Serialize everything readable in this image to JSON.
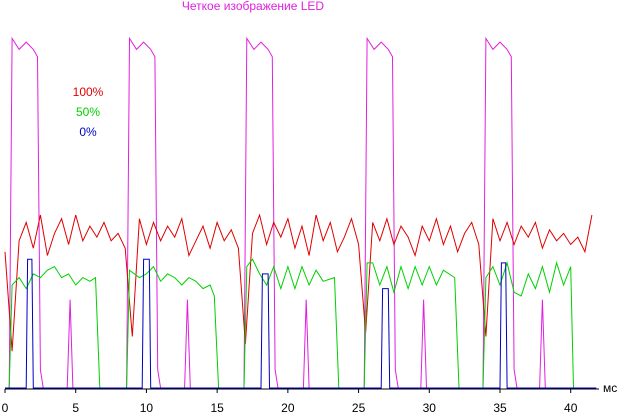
{
  "chart_data": {
    "type": "line",
    "title": "Четкое изображение LED",
    "title_color": "#e020e0",
    "x_unit": "мс",
    "xlim": [
      0,
      42
    ],
    "xticks": [
      0,
      5,
      10,
      15,
      20,
      25,
      30,
      35,
      40
    ],
    "ylim": [
      0,
      100
    ],
    "series": [
      {
        "color": "#e020e0",
        "x": [
          0,
          0.3,
          0.5,
          1,
          1.5,
          2,
          2.3,
          2.5,
          2.7,
          4.4,
          4.6,
          4.8,
          8.6,
          8.8,
          9.3,
          9.8,
          10.3,
          10.6,
          10.8,
          11,
          12.7,
          12.9,
          13.1,
          16.9,
          17.1,
          17.6,
          18.1,
          18.6,
          18.9,
          19.1,
          19.3,
          21.1,
          21.3,
          21.5,
          25.4,
          25.6,
          26.1,
          26.6,
          27.1,
          27.4,
          27.6,
          27.8,
          29.4,
          29.6,
          29.8,
          33.8,
          34,
          34.5,
          35,
          35.5,
          35.8,
          36,
          36.2,
          37.8,
          38,
          38.2,
          41.8
        ],
        "values": [
          0,
          0,
          95,
          92,
          94,
          92,
          90,
          5,
          0,
          0,
          24,
          0,
          0,
          95,
          92,
          94,
          92,
          90,
          5,
          0,
          0,
          24,
          0,
          0,
          95,
          92,
          94,
          92,
          90,
          5,
          0,
          0,
          24,
          0,
          0,
          95,
          92,
          94,
          92,
          90,
          5,
          0,
          0,
          24,
          0,
          0,
          95,
          92,
          94,
          92,
          90,
          5,
          0,
          0,
          24,
          0,
          0
        ]
      },
      {
        "name": "100%",
        "color": "#e00000",
        "x": [
          0,
          0.5,
          1,
          1.5,
          2,
          2.5,
          3,
          3.5,
          4,
          4.5,
          5,
          5.5,
          6,
          6.5,
          7,
          7.5,
          8,
          8.5,
          9,
          9.5,
          10,
          10.5,
          11,
          11.5,
          12,
          12.5,
          13,
          13.5,
          14,
          14.5,
          15,
          15.5,
          16,
          16.5,
          17,
          17.5,
          18,
          18.5,
          19,
          19.5,
          20,
          20.5,
          21,
          21.5,
          22,
          22.5,
          23,
          23.5,
          24,
          24.5,
          25,
          25.5,
          26,
          26.5,
          27,
          27.5,
          28,
          28.5,
          29,
          29.5,
          30,
          30.5,
          31,
          31.5,
          32,
          32.5,
          33,
          33.5,
          34,
          34.5,
          35,
          35.5,
          36,
          36.5,
          37,
          37.5,
          38,
          38.5,
          39,
          39.5,
          40,
          40.5,
          41,
          41.5
        ],
        "values": [
          37,
          10,
          40,
          45,
          38,
          47,
          36,
          42,
          46,
          39,
          47,
          40,
          44,
          41,
          45,
          40,
          42,
          38,
          14,
          46,
          39,
          45,
          40,
          44,
          41,
          46,
          36,
          40,
          44,
          38,
          45,
          40,
          43,
          38,
          12,
          42,
          47,
          39,
          45,
          41,
          46,
          38,
          44,
          36,
          47,
          40,
          45,
          37,
          41,
          46,
          39,
          15,
          45,
          40,
          46,
          39,
          44,
          41,
          36,
          44,
          40,
          46,
          39,
          44,
          37,
          42,
          45,
          39,
          14,
          46,
          40,
          45,
          39,
          44,
          41,
          45,
          38,
          43,
          40,
          42,
          39,
          41,
          37,
          47
        ]
      },
      {
        "name": "50%",
        "color": "#00d000",
        "x": [
          0,
          0.3,
          0.5,
          1,
          1.5,
          2,
          2.5,
          3,
          3.5,
          4,
          4.5,
          5,
          5.5,
          6,
          6.4,
          6.7,
          8.6,
          8.8,
          9.5,
          10,
          10.5,
          11,
          11.5,
          12,
          12.5,
          13,
          13.5,
          14,
          14.5,
          14.8,
          15.1,
          16.9,
          17.1,
          17.5,
          18,
          18.5,
          19,
          19.5,
          20,
          20.5,
          21,
          21.5,
          22,
          22.5,
          23.3,
          23.6,
          25.4,
          25.6,
          26,
          26.5,
          27,
          27.5,
          28,
          28.5,
          29,
          29.5,
          30,
          30.5,
          31,
          31.8,
          32.1,
          33.8,
          34,
          34.5,
          35,
          35.5,
          36,
          36.5,
          37,
          37.5,
          38,
          38.5,
          39,
          39.5,
          40,
          40.2,
          41.8
        ],
        "values": [
          0,
          0,
          28,
          30,
          27,
          31,
          30,
          32,
          33,
          30,
          31,
          28,
          30,
          29,
          30,
          0,
          0,
          32,
          30,
          31,
          33,
          29,
          31,
          30,
          28,
          30,
          29,
          27,
          28,
          25,
          0,
          0,
          33,
          35,
          31,
          28,
          33,
          27,
          33,
          27,
          33,
          28,
          32,
          29,
          30,
          0,
          0,
          34,
          34,
          28,
          33,
          26,
          33,
          27,
          33,
          28,
          33,
          28,
          32,
          30,
          0,
          0,
          30,
          33,
          28,
          34,
          26,
          25,
          31,
          27,
          33,
          26,
          34,
          28,
          33,
          0,
          0
        ]
      },
      {
        "name": "0%",
        "color": "#0000c0",
        "x": [
          0,
          1.5,
          1.6,
          1.9,
          2,
          9.7,
          9.8,
          10.2,
          10.3,
          18.1,
          18.2,
          18.6,
          18.7,
          26.6,
          26.7,
          27.1,
          27.2,
          35,
          35.1,
          35.4,
          35.5,
          41.8
        ],
        "values": [
          0,
          0,
          35,
          35,
          0,
          0,
          35,
          35,
          0,
          0,
          31,
          31,
          0,
          0,
          27,
          27,
          0,
          0,
          34,
          34,
          0,
          0
        ]
      }
    ]
  }
}
